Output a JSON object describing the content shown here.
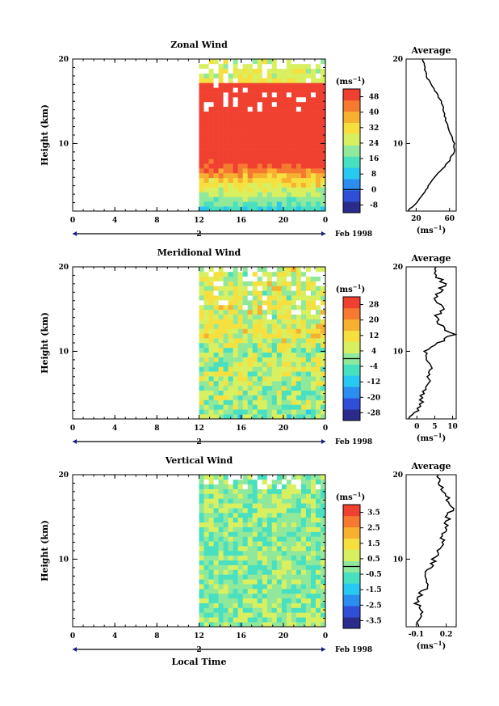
{
  "figure": {
    "xlabel": "Local Time",
    "date_label": "Feb 1998",
    "day_label": "2",
    "avg_title": "Average",
    "avg_unit_base": "(ms",
    "unit_exp": "−1",
    "unit_close": ")",
    "cb_unit_base": "(ms",
    "ylabel": "Height (km)"
  },
  "chart_data": [
    {
      "id": "zonal",
      "type": "heatmap",
      "title": "Zonal Wind",
      "ylabel": "Height (km)",
      "xlabel": "",
      "x_ticks": [
        "0",
        "4",
        "8",
        "12",
        "16",
        "20",
        "0"
      ],
      "x_range_hours": [
        0,
        24
      ],
      "data_start_hour": 12,
      "y_ticks": [
        "10",
        "20"
      ],
      "y_range_km": [
        2,
        20
      ],
      "colorbar": {
        "unit": "(ms⁻¹)",
        "ticks": [
          "48",
          "40",
          "32",
          "24",
          "16",
          "8",
          "0",
          "-8"
        ],
        "range": [
          -12,
          52
        ],
        "zero_line": 0
      },
      "profile": {
        "title": "Average",
        "x_ticks": [
          "20",
          "60"
        ],
        "x_range": [
          8,
          68
        ],
        "unit": "(ms⁻¹)",
        "height_km": [
          2,
          3,
          4,
          5,
          6,
          7,
          8,
          9,
          10,
          11,
          12,
          13,
          14,
          15,
          16,
          17,
          18,
          19,
          20
        ],
        "values": [
          10,
          20,
          28,
          35,
          42,
          52,
          60,
          65,
          66,
          62,
          58,
          55,
          53,
          50,
          44,
          38,
          32,
          30,
          28
        ]
      },
      "mid_level_km": 10
    },
    {
      "id": "meridional",
      "type": "heatmap",
      "title": "Meridional Wind",
      "ylabel": "Height (km)",
      "xlabel": "",
      "x_ticks": [
        "0",
        "4",
        "8",
        "12",
        "16",
        "20",
        "0"
      ],
      "x_range_hours": [
        0,
        24
      ],
      "data_start_hour": 12,
      "y_ticks": [
        "10",
        "20"
      ],
      "y_range_km": [
        2,
        20
      ],
      "colorbar": {
        "unit": "(ms⁻¹)",
        "ticks": [
          "28",
          "20",
          "12",
          "4",
          "-4",
          "-12",
          "-20",
          "-28"
        ],
        "range": [
          -32,
          32
        ],
        "zero_line": 0
      },
      "profile": {
        "title": "Average",
        "x_ticks": [
          "0",
          "5",
          "10"
        ],
        "x_range": [
          -3,
          11
        ],
        "unit": "(ms⁻¹)",
        "height_km": [
          2,
          3,
          4,
          5,
          6,
          7,
          8,
          9,
          10,
          11,
          12,
          13,
          14,
          15,
          16,
          17,
          18,
          19,
          20
        ],
        "values": [
          -2,
          0,
          1,
          2,
          3,
          3,
          4,
          3,
          2,
          6,
          10,
          7,
          5,
          8,
          5,
          6,
          8,
          5,
          6
        ]
      },
      "mid_level_km": 10
    },
    {
      "id": "vertical",
      "type": "heatmap",
      "title": "Vertical Wind",
      "ylabel": "Height (km)",
      "xlabel": "Local Time",
      "x_ticks": [
        "0",
        "4",
        "8",
        "12",
        "16",
        "20",
        "0"
      ],
      "x_range_hours": [
        0,
        24
      ],
      "data_start_hour": 12,
      "y_ticks": [
        "10",
        "20"
      ],
      "y_range_km": [
        2,
        20
      ],
      "colorbar": {
        "unit": "(ms⁻¹)",
        "ticks": [
          "3.5",
          "2.5",
          "1.5",
          "0.5",
          "-0.5",
          "-1.5",
          "-2.5",
          "-3.5"
        ],
        "range": [
          -4,
          4
        ],
        "zero_line": 0
      },
      "profile": {
        "title": "Average",
        "x_ticks": [
          "-0.1",
          "0.2"
        ],
        "x_range": [
          -0.2,
          0.3
        ],
        "unit": "(ms⁻¹)",
        "height_km": [
          2,
          3,
          4,
          5,
          6,
          7,
          8,
          9,
          10,
          11,
          12,
          13,
          14,
          15,
          16,
          17,
          18,
          19,
          20
        ],
        "values": [
          -0.1,
          -0.05,
          -0.05,
          -0.1,
          -0.05,
          0.02,
          -0.02,
          0.05,
          0.08,
          0.12,
          0.15,
          0.18,
          0.2,
          0.22,
          0.25,
          0.22,
          0.18,
          0.15,
          0.1
        ]
      },
      "mid_level_km": 10
    }
  ]
}
